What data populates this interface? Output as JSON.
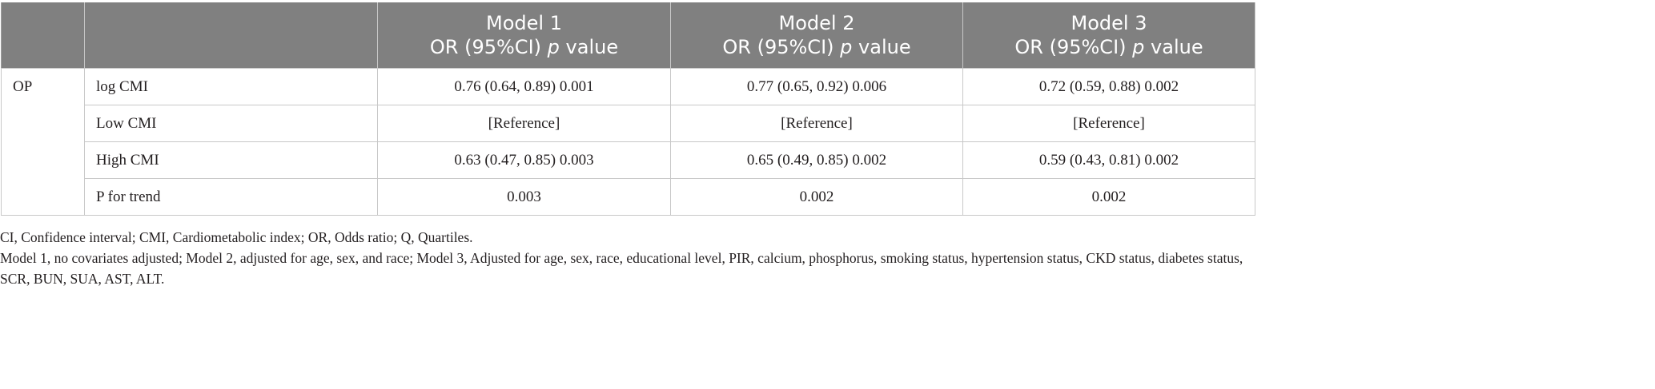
{
  "table": {
    "headers": [
      {
        "name": "",
        "metric": ""
      },
      {
        "name": "",
        "metric": ""
      },
      {
        "name": "Model 1",
        "metric": "OR (95%CI)",
        "pvalue": "p",
        "suffix": "value"
      },
      {
        "name": "Model 2",
        "metric": "OR (95%CI)",
        "pvalue": "p",
        "suffix": "value"
      },
      {
        "name": "Model 3",
        "metric": "OR (95%CI)",
        "pvalue": "p",
        "suffix": "value"
      }
    ],
    "group_label": "OP",
    "rows": [
      {
        "label": "log CMI",
        "values": [
          "0.76 (0.64, 0.89) 0.001",
          "0.77 (0.65, 0.92) 0.006",
          "0.72 (0.59, 0.88) 0.002"
        ]
      },
      {
        "label": "Low CMI",
        "values": [
          "[Reference]",
          "[Reference]",
          "[Reference]"
        ]
      },
      {
        "label": "High CMI",
        "values": [
          "0.63 (0.47, 0.85) 0.003",
          "0.65 (0.49, 0.85) 0.002",
          "0.59 (0.43, 0.81) 0.002"
        ]
      },
      {
        "label": "P for trend",
        "values": [
          "0.003",
          "0.002",
          "0.002"
        ]
      }
    ]
  },
  "footnotes": [
    "CI, Confidence interval; CMI, Cardiometabolic index; OR, Odds ratio; Q, Quartiles.",
    "Model 1, no covariates adjusted; Model 2, adjusted for age, sex, and race; Model 3, Adjusted for age, sex, race, educational level, PIR, calcium, phosphorus, smoking status, hypertension status, CKD status, diabetes status, SCR, BUN, SUA, AST, ALT."
  ],
  "colors": {
    "header_background": "#808080",
    "header_text": "#ffffff",
    "grid_line": "#c8c8c8",
    "body_text": "#231f20"
  }
}
